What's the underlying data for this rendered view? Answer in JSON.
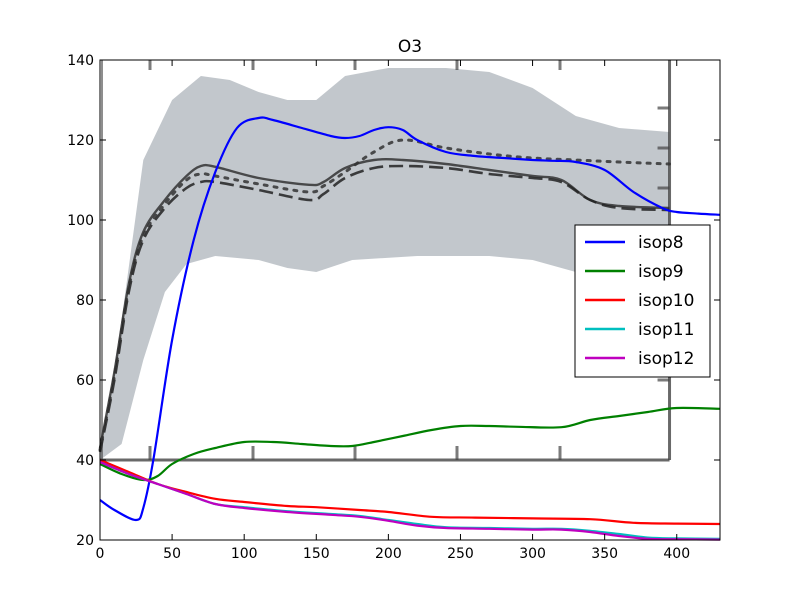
{
  "chart_data": {
    "type": "line",
    "title": "O3",
    "xlabel": "",
    "ylabel": "",
    "xlim": [
      0,
      430
    ],
    "ylim": [
      20,
      140
    ],
    "xticks": [
      0,
      50,
      100,
      150,
      200,
      250,
      300,
      350,
      400
    ],
    "yticks": [
      20,
      40,
      60,
      80,
      100,
      120,
      140
    ],
    "grid": false,
    "legend_position": "right",
    "background_reference": {
      "band_upper": [
        [
          0,
          41
        ],
        [
          15,
          75
        ],
        [
          30,
          115
        ],
        [
          50,
          130
        ],
        [
          70,
          136
        ],
        [
          90,
          135
        ],
        [
          110,
          132
        ],
        [
          130,
          130
        ],
        [
          150,
          130
        ],
        [
          170,
          136
        ],
        [
          200,
          138
        ],
        [
          240,
          138
        ],
        [
          270,
          137
        ],
        [
          300,
          133
        ],
        [
          330,
          126
        ],
        [
          360,
          123
        ],
        [
          395,
          122
        ]
      ],
      "band_lower": [
        [
          0,
          40
        ],
        [
          15,
          44
        ],
        [
          30,
          65
        ],
        [
          45,
          82
        ],
        [
          60,
          89
        ],
        [
          80,
          91
        ],
        [
          110,
          90
        ],
        [
          130,
          88
        ],
        [
          150,
          87
        ],
        [
          175,
          90
        ],
        [
          220,
          91
        ],
        [
          270,
          91
        ],
        [
          300,
          90
        ],
        [
          330,
          87
        ],
        [
          360,
          84
        ],
        [
          395,
          82
        ]
      ],
      "solid": [
        [
          0,
          43
        ],
        [
          10,
          62
        ],
        [
          20,
          84
        ],
        [
          30,
          97
        ],
        [
          45,
          105
        ],
        [
          60,
          111
        ],
        [
          70,
          113.5
        ],
        [
          80,
          113.3
        ],
        [
          110,
          110.5
        ],
        [
          145,
          108.8
        ],
        [
          155,
          109.5
        ],
        [
          170,
          113
        ],
        [
          190,
          115
        ],
        [
          210,
          115
        ],
        [
          240,
          114
        ],
        [
          270,
          112.5
        ],
        [
          300,
          111
        ],
        [
          320,
          110
        ],
        [
          340,
          105
        ],
        [
          360,
          103.5
        ],
        [
          395,
          103
        ]
      ],
      "dashed": [
        [
          0,
          42
        ],
        [
          10,
          60
        ],
        [
          20,
          82
        ],
        [
          30,
          95
        ],
        [
          45,
          103
        ],
        [
          60,
          108
        ],
        [
          70,
          109.5
        ],
        [
          80,
          109.5
        ],
        [
          110,
          107.5
        ],
        [
          145,
          105
        ],
        [
          155,
          106.5
        ],
        [
          170,
          110.5
        ],
        [
          190,
          113
        ],
        [
          210,
          113.5
        ],
        [
          240,
          113
        ],
        [
          270,
          111.5
        ],
        [
          300,
          110.5
        ],
        [
          320,
          109.5
        ],
        [
          340,
          105
        ],
        [
          360,
          103
        ],
        [
          395,
          102.5
        ]
      ],
      "dotted": [
        [
          0,
          42.5
        ],
        [
          10,
          61
        ],
        [
          20,
          83
        ],
        [
          30,
          96
        ],
        [
          45,
          104
        ],
        [
          60,
          110
        ],
        [
          70,
          111.5
        ],
        [
          80,
          111
        ],
        [
          110,
          109
        ],
        [
          145,
          107
        ],
        [
          155,
          108.5
        ],
        [
          170,
          112
        ],
        [
          190,
          117
        ],
        [
          210,
          120
        ],
        [
          240,
          118
        ],
        [
          270,
          116.5
        ],
        [
          300,
          115.5
        ],
        [
          330,
          115
        ],
        [
          360,
          114.5
        ],
        [
          395,
          114
        ]
      ]
    },
    "series": [
      {
        "name": "isop8",
        "color": "#0000ff",
        "points": [
          [
            0,
            30
          ],
          [
            10,
            27.5
          ],
          [
            25,
            25
          ],
          [
            30,
            28
          ],
          [
            37,
            40
          ],
          [
            50,
            70
          ],
          [
            65,
            95
          ],
          [
            80,
            112
          ],
          [
            95,
            123
          ],
          [
            110,
            125.5
          ],
          [
            120,
            125
          ],
          [
            140,
            123
          ],
          [
            160,
            121
          ],
          [
            170,
            120.5
          ],
          [
            180,
            121
          ],
          [
            190,
            122.5
          ],
          [
            200,
            123.2
          ],
          [
            210,
            122.5
          ],
          [
            220,
            120
          ],
          [
            240,
            117
          ],
          [
            260,
            116
          ],
          [
            280,
            115.5
          ],
          [
            300,
            115
          ],
          [
            315,
            114.8
          ],
          [
            330,
            114.5
          ],
          [
            350,
            112.5
          ],
          [
            370,
            107
          ],
          [
            390,
            103
          ],
          [
            400,
            102
          ],
          [
            415,
            101.6
          ],
          [
            430,
            101.3
          ]
        ]
      },
      {
        "name": "isop9",
        "color": "#008000",
        "points": [
          [
            0,
            39
          ],
          [
            15,
            36.5
          ],
          [
            30,
            35
          ],
          [
            40,
            36
          ],
          [
            50,
            39
          ],
          [
            65,
            41.5
          ],
          [
            80,
            43
          ],
          [
            100,
            44.5
          ],
          [
            120,
            44.5
          ],
          [
            140,
            44
          ],
          [
            160,
            43.5
          ],
          [
            175,
            43.5
          ],
          [
            190,
            44.5
          ],
          [
            210,
            46
          ],
          [
            230,
            47.5
          ],
          [
            250,
            48.5
          ],
          [
            270,
            48.5
          ],
          [
            290,
            48.3
          ],
          [
            320,
            48.2
          ],
          [
            340,
            50
          ],
          [
            360,
            51
          ],
          [
            380,
            52
          ],
          [
            400,
            53
          ],
          [
            430,
            52.8
          ]
        ]
      },
      {
        "name": "isop10",
        "color": "#ff0000",
        "points": [
          [
            0,
            40
          ],
          [
            20,
            37
          ],
          [
            40,
            34
          ],
          [
            60,
            32
          ],
          [
            80,
            30.3
          ],
          [
            100,
            29.5
          ],
          [
            130,
            28.5
          ],
          [
            150,
            28.2
          ],
          [
            180,
            27.5
          ],
          [
            200,
            27
          ],
          [
            230,
            25.8
          ],
          [
            260,
            25.6
          ],
          [
            300,
            25.4
          ],
          [
            340,
            25.2
          ],
          [
            370,
            24.3
          ],
          [
            400,
            24.1
          ],
          [
            430,
            24
          ]
        ]
      },
      {
        "name": "isop11",
        "color": "#00bfbf",
        "points": [
          [
            0,
            39.5
          ],
          [
            20,
            36.5
          ],
          [
            40,
            34
          ],
          [
            60,
            31.5
          ],
          [
            80,
            29
          ],
          [
            100,
            28.2
          ],
          [
            130,
            27.2
          ],
          [
            160,
            26.5
          ],
          [
            180,
            26
          ],
          [
            200,
            25
          ],
          [
            220,
            24
          ],
          [
            240,
            23.2
          ],
          [
            270,
            23
          ],
          [
            300,
            22.8
          ],
          [
            320,
            22.8
          ],
          [
            340,
            22.3
          ],
          [
            360,
            21.5
          ],
          [
            380,
            20.6
          ],
          [
            400,
            20.4
          ],
          [
            430,
            20.3
          ]
        ]
      },
      {
        "name": "isop12",
        "color": "#bf00bf",
        "points": [
          [
            0,
            39.5
          ],
          [
            20,
            36.5
          ],
          [
            40,
            34
          ],
          [
            60,
            31.5
          ],
          [
            80,
            29
          ],
          [
            100,
            28
          ],
          [
            130,
            27
          ],
          [
            160,
            26.3
          ],
          [
            180,
            25.8
          ],
          [
            200,
            24.8
          ],
          [
            220,
            23.6
          ],
          [
            240,
            23
          ],
          [
            270,
            22.8
          ],
          [
            300,
            22.6
          ],
          [
            320,
            22.6
          ],
          [
            340,
            22
          ],
          [
            360,
            21
          ],
          [
            380,
            20.3
          ],
          [
            400,
            20.2
          ],
          [
            430,
            20.1
          ]
        ]
      }
    ]
  }
}
